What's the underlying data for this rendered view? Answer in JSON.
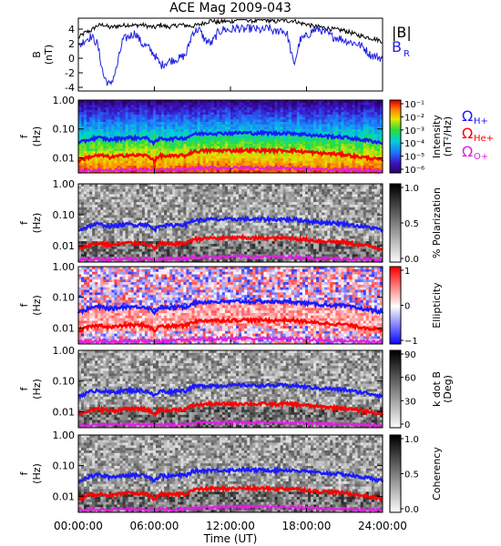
{
  "title": "ACE Mag 2009-043",
  "colors": {
    "magnitude": "#000000",
    "br": "#2020e0",
    "h_plus": "#1a1aff",
    "he_plus": "#ff0000",
    "o_plus": "#e020e0",
    "axis": "#000000"
  },
  "chart_data": [
    {
      "type": "line",
      "panel": "b-field",
      "ylabel": "B",
      "yunit": "(nT)",
      "ylim": [
        -4.5,
        5.5
      ],
      "yticks": [
        "-4",
        "-2",
        "0",
        "2",
        "4"
      ],
      "xlim": [
        0,
        24
      ],
      "legend": [
        "|B|",
        "B",
        "R"
      ],
      "series": [
        {
          "name": "|B|",
          "x": [
            0,
            0.5,
            1,
            1.5,
            2,
            2.5,
            3,
            3.5,
            4,
            4.5,
            5,
            5.5,
            6,
            6.5,
            7,
            7.5,
            8,
            8.5,
            9,
            9.5,
            10,
            10.5,
            11,
            11.5,
            12,
            12.5,
            13,
            13.5,
            14,
            14.5,
            15,
            15.5,
            16,
            16.5,
            17,
            17.5,
            18,
            18.5,
            19,
            19.5,
            20,
            20.5,
            21,
            21.5,
            22,
            22.5,
            23,
            23.5,
            24
          ],
          "values": [
            2.8,
            3.5,
            3.8,
            4.5,
            4.6,
            4.2,
            4.4,
            4.5,
            4.6,
            4.5,
            4.6,
            4.4,
            4.2,
            4.6,
            4.3,
            4.4,
            4.6,
            4.5,
            4.4,
            4.6,
            4.9,
            5.2,
            4.9,
            5.1,
            5.0,
            5.3,
            5.4,
            5.2,
            5.1,
            5.3,
            5.2,
            5.0,
            5.3,
            5.1,
            5.2,
            4.8,
            4.7,
            4.4,
            4.3,
            4.2,
            4.0,
            3.9,
            3.8,
            3.5,
            3.2,
            3.0,
            2.8,
            2.6,
            2.3
          ]
        },
        {
          "name": "B",
          "x": [
            0,
            0.5,
            1,
            1.5,
            2,
            2.5,
            3,
            3.5,
            4,
            4.5,
            5,
            5.5,
            6,
            6.5,
            7,
            7.5,
            8,
            8.5,
            9,
            9.5,
            10,
            10.5,
            11,
            11.5,
            12,
            12.5,
            13,
            13.5,
            14,
            14.5,
            15,
            15.5,
            16,
            16.5,
            17,
            17.5,
            18,
            18.5,
            19,
            19.5,
            20,
            20.5,
            21,
            21.5,
            22,
            22.5,
            23,
            23.5,
            24
          ],
          "values": [
            1.5,
            2.5,
            3.0,
            2.0,
            -2.5,
            -3.8,
            -1.5,
            2.5,
            3.0,
            3.5,
            2.0,
            1.5,
            0.5,
            -1.0,
            -0.5,
            -0.2,
            0.0,
            0.5,
            3.5,
            4.0,
            2.5,
            2.0,
            3.5,
            4.0,
            3.8,
            4.2,
            3.9,
            4.1,
            4.0,
            3.8,
            4.2,
            3.5,
            4.0,
            3.2,
            -1.0,
            2.5,
            3.0,
            3.8,
            4.0,
            3.5,
            3.0,
            2.8,
            2.5,
            2.2,
            2.0,
            1.5,
            0.5,
            0.2,
            0.0
          ]
        }
      ]
    },
    {
      "type": "heatmap",
      "panel": "intensity",
      "ylabel": "f",
      "yunit": "(Hz)",
      "yscale": "log",
      "ylim": [
        0.003,
        1.0
      ],
      "yticks": [
        "1.00",
        "0.10",
        "0.01"
      ],
      "colorbar": {
        "label": "Intensity",
        "unit": "(nT²/Hz)",
        "ticks": [
          "10⁻¹",
          "10⁻²",
          "10⁻³",
          "10⁻⁴",
          "10⁻⁵",
          "10⁻⁶"
        ],
        "palette": "rainbow"
      },
      "gyro_legend": [
        "Ω",
        "H+",
        "He+",
        "O+"
      ]
    },
    {
      "type": "heatmap",
      "panel": "polarization",
      "ylabel": "f",
      "yunit": "(Hz)",
      "yscale": "log",
      "ylim": [
        0.003,
        1.0
      ],
      "yticks": [
        "1.00",
        "0.10",
        "0.01"
      ],
      "colorbar": {
        "label": "% Polarization",
        "ticks": [
          "1.0",
          "0.5",
          "0.0"
        ],
        "palette": "gray"
      }
    },
    {
      "type": "heatmap",
      "panel": "ellipticity",
      "ylabel": "f",
      "yunit": "(Hz)",
      "yscale": "log",
      "ylim": [
        0.003,
        1.0
      ],
      "yticks": [
        "1.00",
        "0.10",
        "0.01"
      ],
      "colorbar": {
        "label": "Ellipticity",
        "ticks": [
          "1",
          "0",
          "−1"
        ],
        "palette": "bwr"
      }
    },
    {
      "type": "heatmap",
      "panel": "k-dot-b",
      "ylabel": "f",
      "yunit": "(Hz)",
      "yscale": "log",
      "ylim": [
        0.003,
        1.0
      ],
      "yticks": [
        "1.00",
        "0.10",
        "0.01"
      ],
      "colorbar": {
        "label": "k dot B",
        "unit": "(Deg)",
        "ticks": [
          "90",
          "60",
          "30",
          "0"
        ],
        "palette": "gray"
      }
    },
    {
      "type": "heatmap",
      "panel": "coherency",
      "ylabel": "f",
      "yunit": "(Hz)",
      "yscale": "log",
      "ylim": [
        0.003,
        1.0
      ],
      "yticks": [
        "1.00",
        "0.10",
        "0.01"
      ],
      "colorbar": {
        "label": "Coherency",
        "ticks": [
          "1.0",
          "0.5",
          "0.0"
        ],
        "palette": "gray"
      }
    }
  ],
  "gyro_lines": {
    "x": [
      0,
      0.5,
      1,
      1.5,
      2,
      2.5,
      3,
      3.5,
      4,
      4.5,
      5,
      5.5,
      6,
      6.5,
      7,
      7.5,
      8,
      8.5,
      9,
      9.5,
      10,
      10.5,
      11,
      11.5,
      12,
      12.5,
      13,
      13.5,
      14,
      14.5,
      15,
      15.5,
      16,
      16.5,
      17,
      17.5,
      18,
      18.5,
      19,
      19.5,
      20,
      20.5,
      21,
      21.5,
      22,
      22.5,
      23,
      23.5,
      24
    ],
    "h_plus": [
      0.032,
      0.038,
      0.045,
      0.05,
      0.047,
      0.042,
      0.045,
      0.048,
      0.05,
      0.048,
      0.05,
      0.046,
      0.032,
      0.048,
      0.045,
      0.046,
      0.049,
      0.048,
      0.065,
      0.068,
      0.07,
      0.072,
      0.07,
      0.072,
      0.071,
      0.073,
      0.074,
      0.072,
      0.071,
      0.073,
      0.072,
      0.07,
      0.073,
      0.071,
      0.072,
      0.066,
      0.065,
      0.06,
      0.058,
      0.057,
      0.055,
      0.053,
      0.052,
      0.048,
      0.044,
      0.042,
      0.039,
      0.036,
      0.032
    ],
    "he_plus": [
      0.008,
      0.0095,
      0.011,
      0.012,
      0.0118,
      0.0105,
      0.011,
      0.012,
      0.0125,
      0.012,
      0.0125,
      0.0115,
      0.008,
      0.012,
      0.011,
      0.0115,
      0.012,
      0.012,
      0.016,
      0.017,
      0.0175,
      0.018,
      0.0175,
      0.018,
      0.0178,
      0.018,
      0.0185,
      0.018,
      0.0178,
      0.018,
      0.018,
      0.0175,
      0.018,
      0.0178,
      0.018,
      0.0165,
      0.0162,
      0.015,
      0.0145,
      0.0142,
      0.0138,
      0.0133,
      0.013,
      0.012,
      0.011,
      0.0105,
      0.0098,
      0.009,
      0.008
    ],
    "o_plus": [
      0.0035,
      0.0036,
      0.0037,
      0.0038,
      0.0038,
      0.0037,
      0.0038,
      0.0038,
      0.0039,
      0.0038,
      0.0039,
      0.0038,
      0.0035,
      0.0038,
      0.0038,
      0.0038,
      0.0039,
      0.0039,
      0.0042,
      0.0043,
      0.0044,
      0.0045,
      0.0044,
      0.0045,
      0.0044,
      0.0045,
      0.0045,
      0.0045,
      0.0044,
      0.0045,
      0.0045,
      0.0044,
      0.0045,
      0.0044,
      0.0045,
      0.0043,
      0.0042,
      0.0041,
      0.004,
      0.004,
      0.0039,
      0.0039,
      0.0038,
      0.0038,
      0.0037,
      0.0037,
      0.0036,
      0.0036,
      0.0035
    ]
  },
  "x_axis": {
    "ticks": [
      "00:00:00",
      "06:00:00",
      "12:00:00",
      "18:00:00",
      "24:00:00"
    ],
    "label": "Time (UT)"
  }
}
